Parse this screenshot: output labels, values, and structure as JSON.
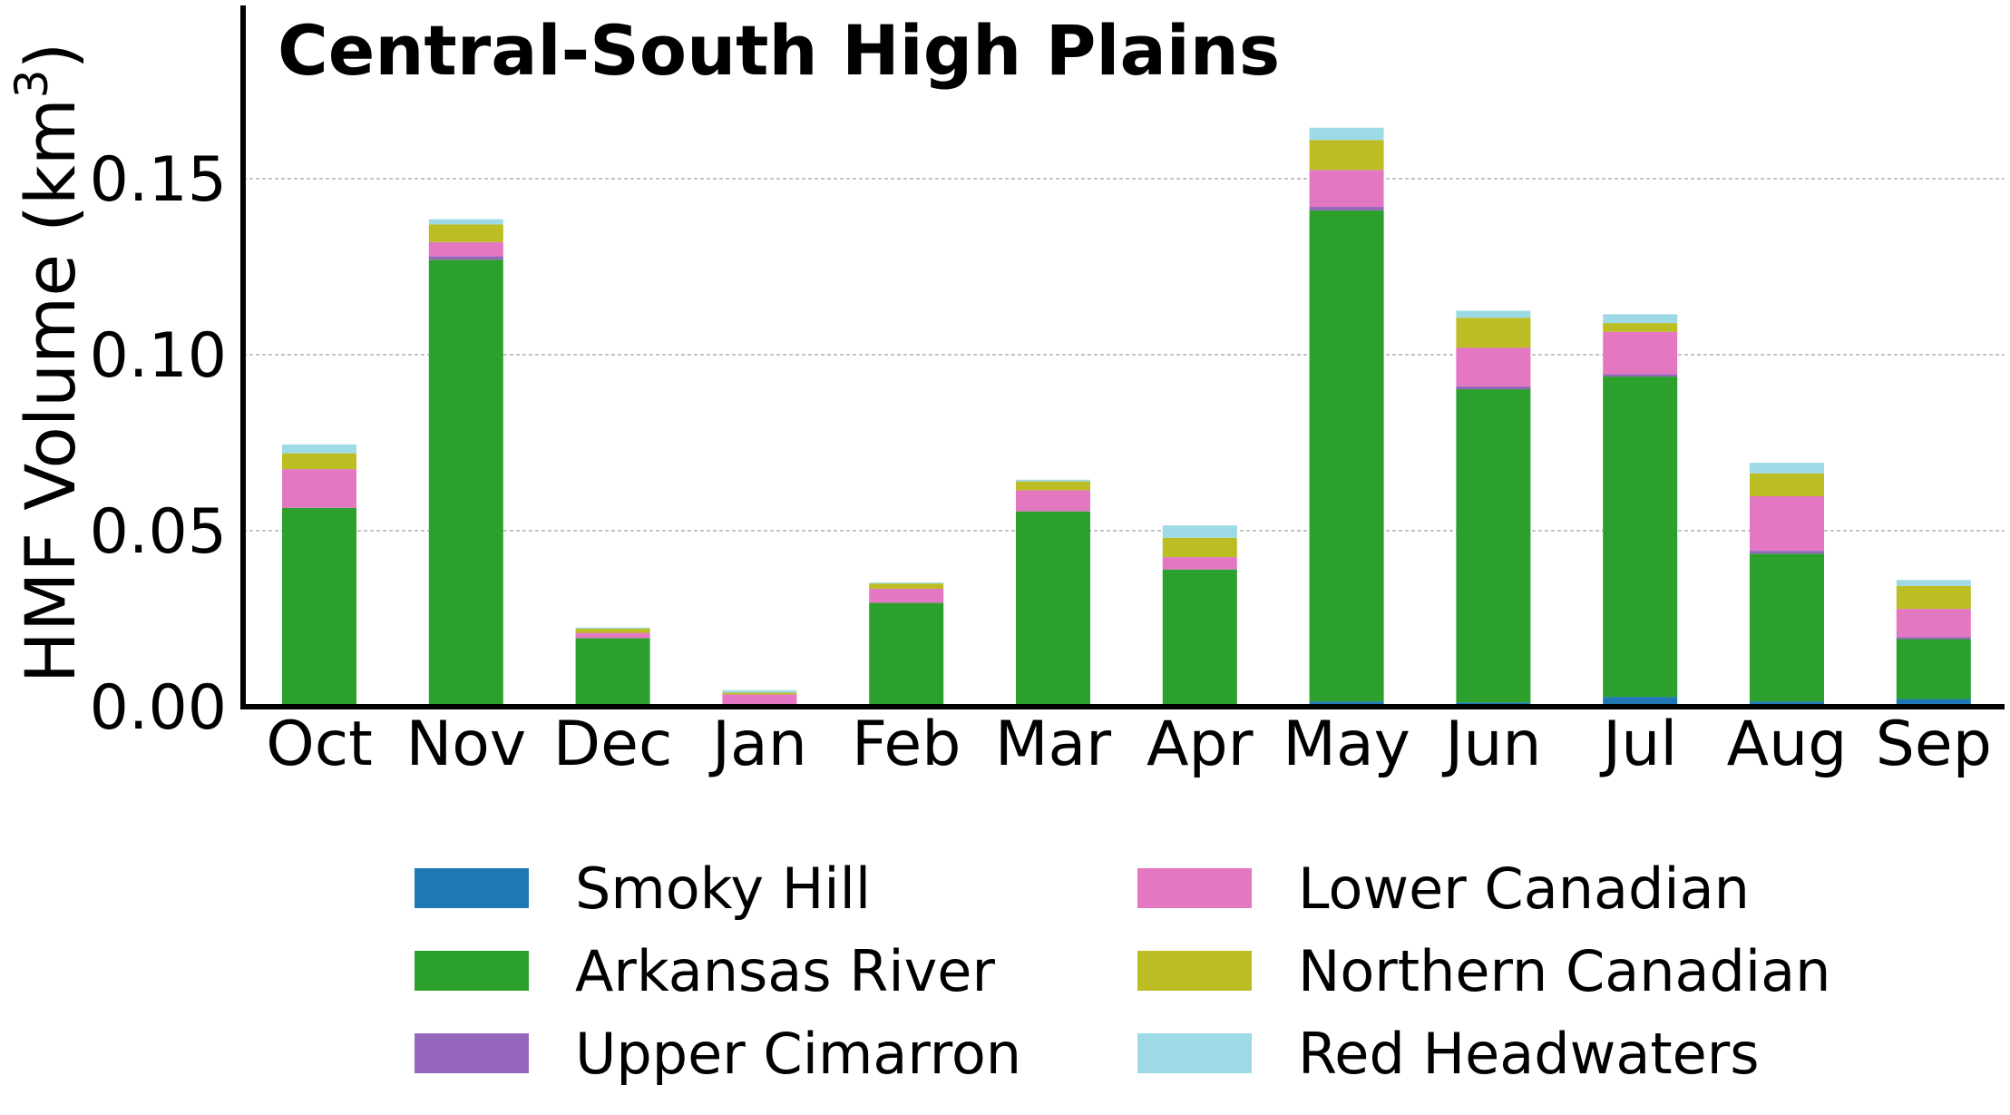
{
  "chart_data": {
    "type": "bar",
    "stacked": true,
    "title": "Central-South High Plains",
    "xlabel": "",
    "ylabel": "HMF Volume (km",
    "ylabel_superscript": "3",
    "ylabel_close": ")",
    "ylim": [
      0,
      0.2
    ],
    "yticks": [
      0.0,
      0.05,
      0.1,
      0.15
    ],
    "ytick_labels": [
      "0.00",
      "0.05",
      "0.10",
      "0.15"
    ],
    "grid": "y-dashed",
    "legend_position": "bottom-center",
    "categories": [
      "Oct",
      "Nov",
      "Dec",
      "Jan",
      "Feb",
      "Mar",
      "Apr",
      "May",
      "Jun",
      "Jul",
      "Aug",
      "Sep"
    ],
    "series": [
      {
        "name": "Smoky Hill",
        "color": "#1f77b4",
        "values": [
          0.0,
          0.0,
          0.0,
          0.0,
          0.0,
          0.0,
          0.0,
          0.0015,
          0.0012,
          0.0028,
          0.0015,
          0.0022
        ]
      },
      {
        "name": "Arkansas River",
        "color": "#2ca02c",
        "values": [
          0.0565,
          0.127,
          0.0195,
          0.0005,
          0.0295,
          0.0555,
          0.039,
          0.1395,
          0.089,
          0.091,
          0.042,
          0.017
        ]
      },
      {
        "name": "Upper Cimarron",
        "color": "#9467bd",
        "values": [
          0.0,
          0.001,
          0.0,
          0.0,
          0.0,
          0.0,
          0.0,
          0.001,
          0.0008,
          0.0007,
          0.0008,
          0.0006
        ]
      },
      {
        "name": "Lower Canadian",
        "color": "#e377c2",
        "values": [
          0.011,
          0.004,
          0.0015,
          0.003,
          0.004,
          0.006,
          0.0035,
          0.0105,
          0.011,
          0.012,
          0.0155,
          0.008
        ]
      },
      {
        "name": "Northern Canadian",
        "color": "#bcbd22",
        "values": [
          0.0045,
          0.005,
          0.0012,
          0.0005,
          0.0015,
          0.0025,
          0.0055,
          0.0085,
          0.0085,
          0.0025,
          0.0065,
          0.0065
        ]
      },
      {
        "name": "Red Headwaters",
        "color": "#9edae5",
        "values": [
          0.0025,
          0.0015,
          0.0003,
          0.0007,
          0.0003,
          0.0005,
          0.0035,
          0.0035,
          0.002,
          0.0025,
          0.003,
          0.0017
        ]
      }
    ]
  }
}
